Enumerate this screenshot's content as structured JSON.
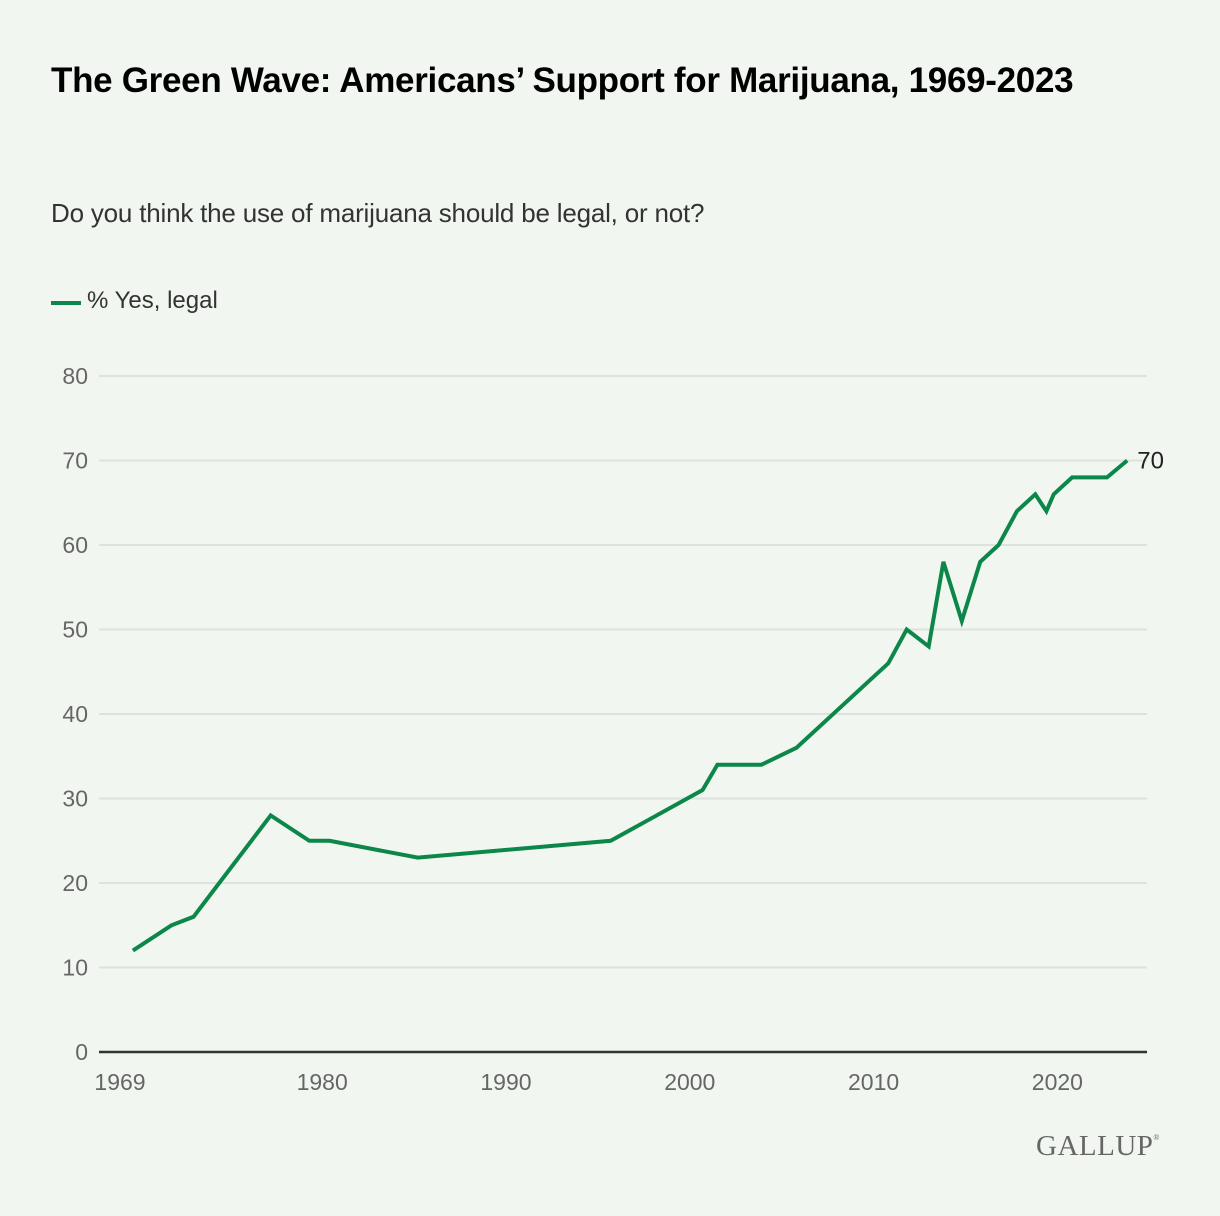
{
  "title": "The Green Wave: Americans’ Support for Marijuana, 1969-2023",
  "subtitle": "Do you think the use of marijuana should be legal, or not?",
  "brand": {
    "logo_text": "GALLUP",
    "registered_mark": "®"
  },
  "chart_data": {
    "type": "line",
    "title": "The Green Wave: Americans’ Support for Marijuana, 1969-2023",
    "subtitle": "Do you think the use of marijuana should be legal, or not?",
    "xlabel": "",
    "ylabel": "",
    "xlim": [
      1969,
      2024
    ],
    "ylim": [
      0,
      80
    ],
    "xticks": [
      1969,
      1980,
      1990,
      2000,
      2010,
      2020
    ],
    "xtick_labels": [
      "1969",
      "1980",
      "1990",
      "2000",
      "2010",
      "2020"
    ],
    "yticks": [
      0,
      10,
      20,
      30,
      40,
      50,
      60,
      70,
      80
    ],
    "ytick_labels": [
      "0",
      "10",
      "20",
      "30",
      "40",
      "50",
      "60",
      "70",
      "80"
    ],
    "grid": true,
    "legend": "top-left",
    "series": [
      {
        "name": "% Yes, legal",
        "color": "#0c8749",
        "end_label": "70",
        "x": [
          1969.7,
          1971.8,
          1973.0,
          1977.2,
          1979.3,
          1980.4,
          1985.2,
          1995.7,
          2000.7,
          2001.5,
          2003.9,
          2005.8,
          2009.8,
          2010.8,
          2011.8,
          2013.0,
          2013.8,
          2014.8,
          2015.8,
          2016.8,
          2017.8,
          2018.8,
          2019.4,
          2019.8,
          2020.8,
          2021.8,
          2022.7,
          2023.8
        ],
        "values": [
          12,
          15,
          16,
          28,
          25,
          25,
          23,
          25,
          31,
          34,
          34,
          36,
          44,
          46,
          50,
          48,
          58,
          51,
          58,
          60,
          64,
          66,
          64,
          66,
          68,
          68,
          68,
          70
        ]
      }
    ]
  }
}
